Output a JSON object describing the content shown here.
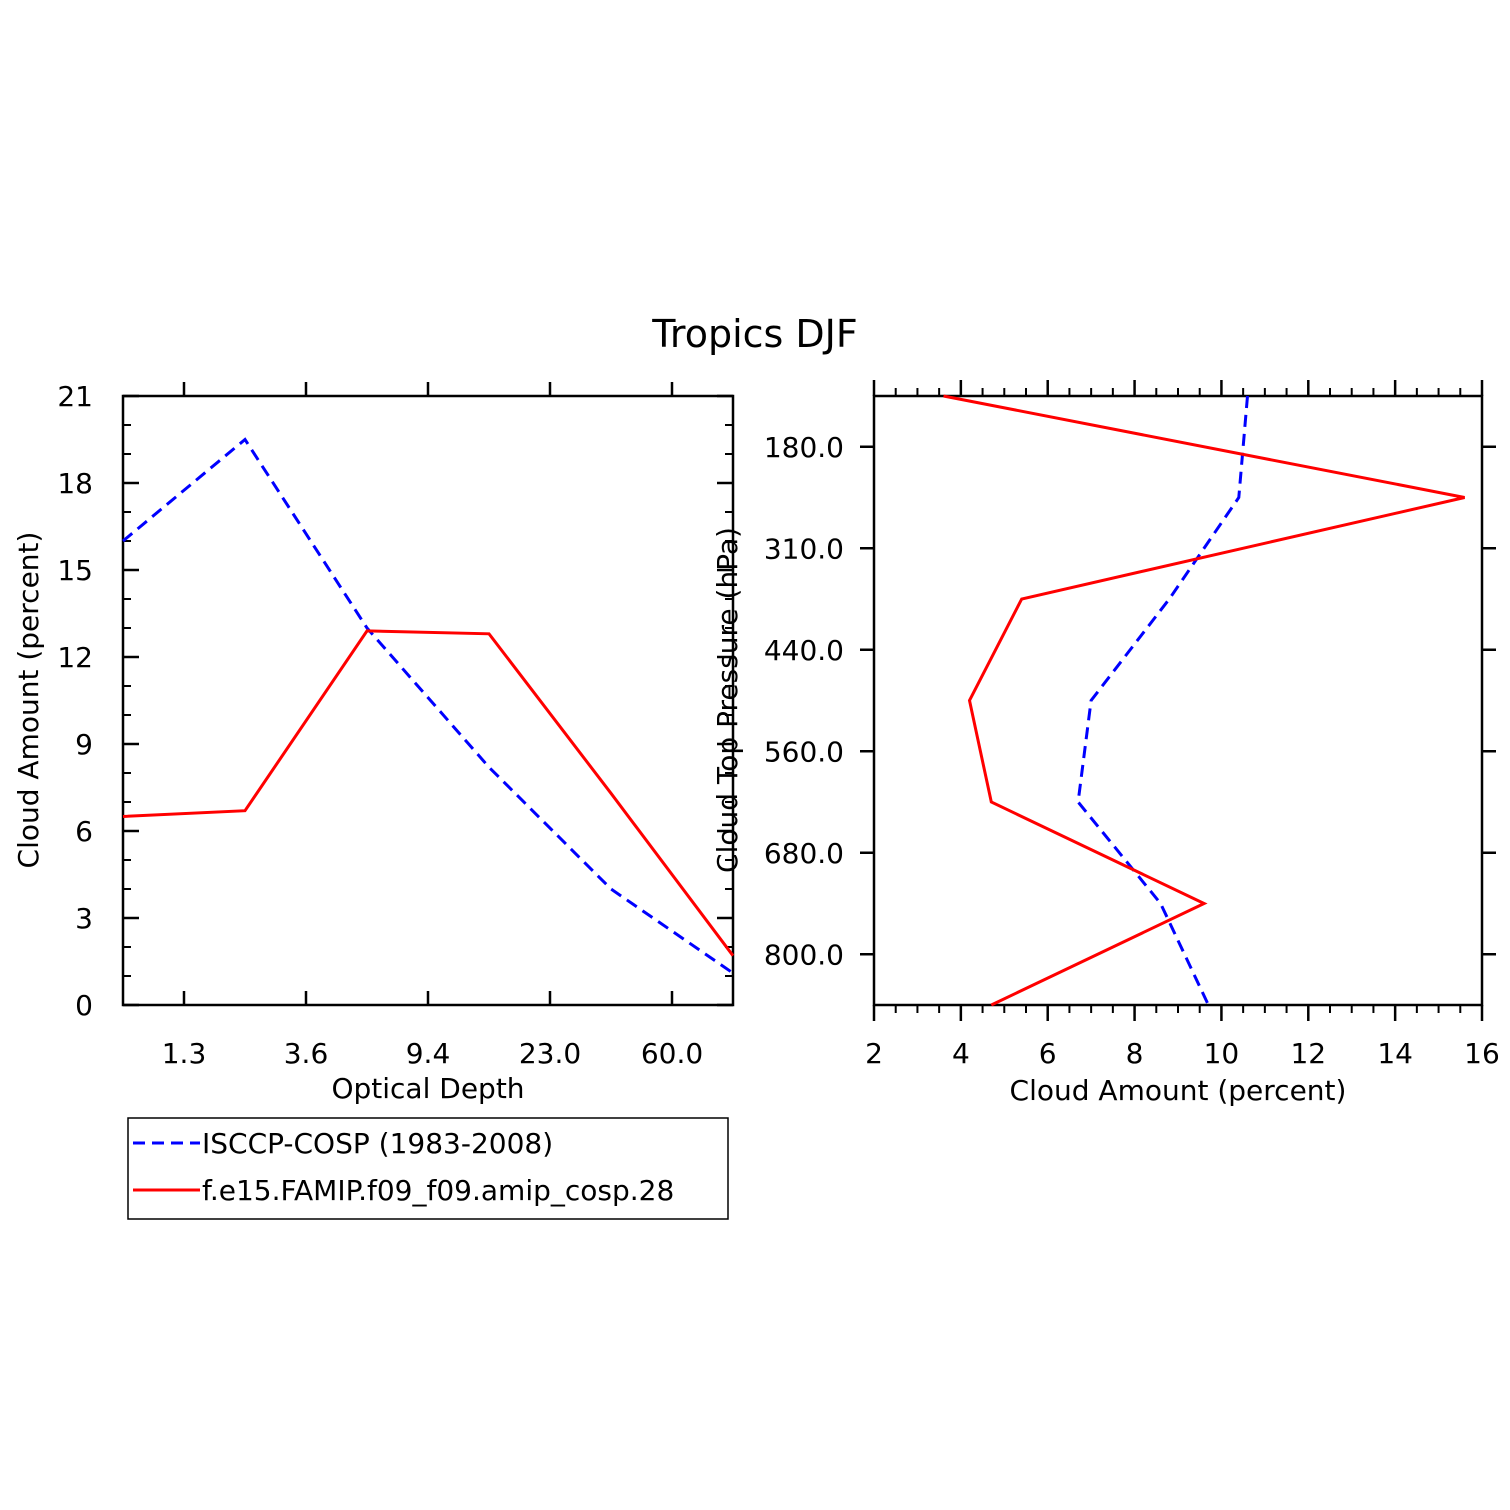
{
  "title": "Tropics DJF",
  "colors": {
    "isccp": "#0000ff",
    "model": "#ff0000",
    "axis": "#000000"
  },
  "legend": {
    "entries": [
      {
        "label": "ISCCP-COSP (1983-2008)",
        "style": "dashed",
        "color": "#0000ff"
      },
      {
        "label": "f.e15.FAMIP.f09_f09.amip_cosp.28",
        "style": "solid",
        "color": "#ff0000"
      }
    ]
  },
  "chart_data": [
    {
      "type": "line",
      "title": "Tropics DJF",
      "xlabel": "Optical Depth",
      "ylabel": "Cloud Amount (percent)",
      "x_tick_labels": [
        "1.3",
        "3.6",
        "9.4",
        "23.0",
        "60.0"
      ],
      "y_tick_labels": [
        "0",
        "3",
        "6",
        "9",
        "12",
        "15",
        "18",
        "21"
      ],
      "ylim": [
        0,
        21
      ],
      "x": [
        0,
        1,
        2,
        3,
        4,
        5
      ],
      "series": [
        {
          "name": "ISCCP-COSP (1983-2008)",
          "values": [
            16.0,
            19.5,
            13.0,
            8.2,
            4.0,
            1.1
          ]
        },
        {
          "name": "f.e15.FAMIP.f09_f09.amip_cosp.28",
          "values": [
            6.5,
            6.7,
            12.9,
            12.8,
            7.3,
            1.7
          ]
        }
      ]
    },
    {
      "type": "line",
      "xlabel": "Cloud Amount (percent)",
      "ylabel": "Cloud Top Pressure (hPa)",
      "x_tick_labels": [
        "2",
        "4",
        "6",
        "8",
        "10",
        "12",
        "14",
        "16"
      ],
      "xlim": [
        2,
        16
      ],
      "y_tick_labels": [
        "180.0",
        "310.0",
        "440.0",
        "560.0",
        "680.0",
        "800.0"
      ],
      "pressure_levels": [
        "top",
        "180.0-310.0",
        "310.0-440.0",
        "440.0-560.0",
        "560.0-680.0",
        "680.0-800.0",
        "bottom"
      ],
      "series": [
        {
          "name": "ISCCP-COSP (1983-2008)",
          "values": [
            10.6,
            10.4,
            8.8,
            7.0,
            6.7,
            8.6,
            9.7
          ]
        },
        {
          "name": "f.e15.FAMIP.f09_f09.amip_cosp.28",
          "values": [
            3.6,
            15.6,
            5.4,
            4.2,
            4.7,
            9.6,
            4.7
          ]
        }
      ]
    }
  ]
}
